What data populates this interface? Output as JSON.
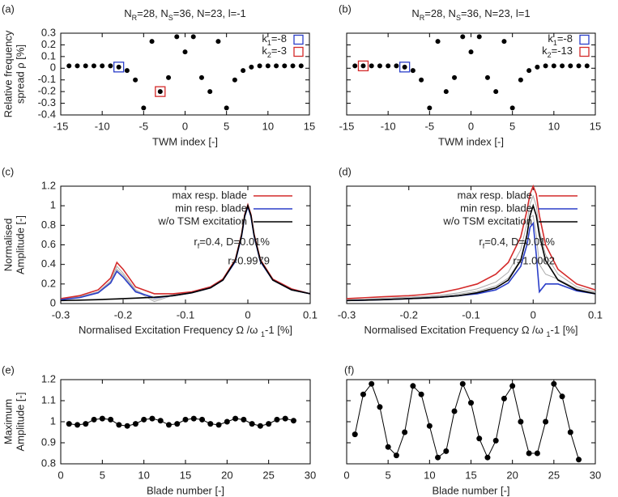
{
  "chart_data": [
    {
      "type": "scatter",
      "panel_label": "(a)",
      "title": [
        "N",
        "R",
        "=28, N",
        "S",
        "=36, N=23, l=-1"
      ],
      "xlabel": "TWM index [-]",
      "ylabel": [
        "Relative frequency",
        "spread ρ [%]"
      ],
      "x": [
        -14,
        -13,
        -12,
        -11,
        -10,
        -9,
        -8,
        -7,
        -6,
        -5,
        -4,
        -3,
        -2,
        -1,
        0,
        1,
        2,
        3,
        4,
        5,
        6,
        7,
        8,
        9,
        10,
        11,
        12,
        13,
        14
      ],
      "values": [
        0.02,
        0.02,
        0.02,
        0.02,
        0.02,
        0.02,
        0.01,
        -0.02,
        -0.1,
        -0.34,
        0.23,
        -0.2,
        -0.08,
        0.27,
        0.14,
        0.27,
        -0.08,
        -0.2,
        0.23,
        -0.34,
        -0.1,
        -0.02,
        0.01,
        0.02,
        0.02,
        0.02,
        0.02,
        0.02,
        0.02
      ],
      "color": "#000000",
      "highlights": [
        {
          "name": [
            "k",
            "1",
            "=-8"
          ],
          "k": -8,
          "color": "#2b3fc9"
        },
        {
          "name": [
            "k",
            "2",
            "=-3"
          ],
          "k": -3,
          "color": "#d42a2a"
        }
      ],
      "xlim": [
        -15,
        15
      ],
      "xticks": [
        -15,
        -10,
        -5,
        0,
        5,
        10,
        15
      ],
      "ylim": [
        -0.4,
        0.3
      ],
      "yticks": [
        -0.4,
        -0.3,
        -0.2,
        -0.1,
        0,
        0.1,
        0.2,
        0.3
      ],
      "ytick_labels": true,
      "legend": "top-right"
    },
    {
      "type": "scatter",
      "panel_label": "(b)",
      "title": [
        "N",
        "R",
        "=28, N",
        "S",
        "=36, N=23, l=1"
      ],
      "xlabel": "TWM index [-]",
      "x": [
        -14,
        -13,
        -12,
        -11,
        -10,
        -9,
        -8,
        -7,
        -6,
        -5,
        -4,
        -3,
        -2,
        -1,
        0,
        1,
        2,
        3,
        4,
        5,
        6,
        7,
        8,
        9,
        10,
        11,
        12,
        13,
        14
      ],
      "values": [
        0.02,
        0.02,
        0.02,
        0.02,
        0.02,
        0.02,
        0.01,
        -0.02,
        -0.1,
        -0.34,
        0.23,
        -0.2,
        -0.08,
        0.27,
        0.14,
        0.27,
        -0.08,
        -0.2,
        0.23,
        -0.34,
        -0.1,
        -0.02,
        0.01,
        0.02,
        0.02,
        0.02,
        0.02,
        0.02,
        0.02
      ],
      "color": "#000000",
      "highlights": [
        {
          "name": [
            "k",
            "1",
            "=-8"
          ],
          "k": -8,
          "color": "#2b3fc9"
        },
        {
          "name": [
            "k",
            "2",
            "=-13"
          ],
          "k": -13,
          "color": "#d42a2a"
        }
      ],
      "xlim": [
        -15,
        15
      ],
      "xticks": [
        -15,
        -10,
        -5,
        0,
        5,
        10,
        15
      ],
      "ylim": [
        -0.4,
        0.3
      ],
      "yticks": [
        -0.4,
        -0.3,
        -0.2,
        -0.1,
        0,
        0.1,
        0.2,
        0.3
      ],
      "ytick_labels": false,
      "legend": "top-right"
    },
    {
      "type": "line",
      "panel_label": "(c)",
      "xlabel": [
        "Normalised Excitation Frequency  Ω /ω ",
        "1",
        "-1  [%]"
      ],
      "ylabel": [
        "Normalised",
        "Amplitude [-]"
      ],
      "x": [
        -0.3,
        -0.27,
        -0.24,
        -0.22,
        -0.21,
        -0.2,
        -0.18,
        -0.15,
        -0.12,
        -0.09,
        -0.06,
        -0.04,
        -0.02,
        -0.01,
        -0.005,
        0,
        0.005,
        0.01,
        0.02,
        0.04,
        0.07,
        0.1
      ],
      "series": [
        {
          "color": "#aaaaaa",
          "values": [
            0.045,
            0.07,
            0.12,
            0.23,
            0.38,
            0.31,
            0.14,
            0.04,
            0.09,
            0.115,
            0.165,
            0.245,
            0.445,
            0.7,
            0.9,
            1.0,
            0.9,
            0.7,
            0.44,
            0.245,
            0.145,
            0.1
          ]
        },
        {
          "color": "#aaaaaa",
          "values": [
            0.04,
            0.065,
            0.115,
            0.22,
            0.35,
            0.29,
            0.13,
            0.02,
            0.085,
            0.112,
            0.162,
            0.242,
            0.44,
            0.7,
            0.9,
            1.0,
            0.9,
            0.7,
            0.44,
            0.24,
            0.14,
            0.1
          ]
        },
        {
          "name": "max resp. blade",
          "color": "#d42a2a",
          "values": [
            0.05,
            0.08,
            0.14,
            0.26,
            0.42,
            0.35,
            0.17,
            0.1,
            0.1,
            0.12,
            0.17,
            0.25,
            0.45,
            0.71,
            0.91,
            1.01,
            0.91,
            0.71,
            0.45,
            0.25,
            0.15,
            0.1
          ]
        },
        {
          "name": "min resp. blade",
          "color": "#2b3fc9",
          "values": [
            0.04,
            0.06,
            0.11,
            0.21,
            0.33,
            0.27,
            0.12,
            0.06,
            0.08,
            0.11,
            0.16,
            0.24,
            0.43,
            0.69,
            0.89,
            0.99,
            0.89,
            0.69,
            0.43,
            0.24,
            0.14,
            0.1
          ]
        },
        {
          "name": "w/o TSM excitation",
          "color": "#000000",
          "values": [
            0.03,
            0.035,
            0.04,
            0.045,
            0.047,
            0.05,
            0.055,
            0.065,
            0.08,
            0.11,
            0.16,
            0.24,
            0.44,
            0.7,
            0.9,
            1.0,
            0.9,
            0.7,
            0.44,
            0.24,
            0.14,
            0.1
          ]
        }
      ],
      "annotations": [
        [
          "r",
          "f",
          "=0.4, D=0.01%"
        ],
        "r=0.9979"
      ],
      "xlim": [
        -0.3,
        0.1
      ],
      "xticks": [
        -0.3,
        -0.2,
        -0.1,
        0,
        0.1
      ],
      "ylim": [
        0,
        1.2
      ],
      "yticks": [
        0,
        0.2,
        0.4,
        0.6,
        0.8,
        1,
        1.2
      ],
      "ytick_labels": true,
      "legend": "top-right"
    },
    {
      "type": "line",
      "panel_label": "(d)",
      "xlabel": [
        "Normalised Excitation Frequency  Ω /ω ",
        "1",
        "-1  [%]"
      ],
      "x": [
        -0.3,
        -0.27,
        -0.24,
        -0.22,
        -0.21,
        -0.2,
        -0.18,
        -0.15,
        -0.12,
        -0.09,
        -0.06,
        -0.04,
        -0.02,
        -0.01,
        -0.005,
        0,
        0.005,
        0.01,
        0.02,
        0.04,
        0.07,
        0.1
      ],
      "series": [
        {
          "color": "#aaaaaa",
          "values": [
            0.04,
            0.045,
            0.055,
            0.06,
            0.062,
            0.065,
            0.07,
            0.085,
            0.11,
            0.15,
            0.22,
            0.32,
            0.55,
            0.82,
            1.02,
            1.1,
            1.0,
            0.75,
            0.5,
            0.3,
            0.17,
            0.12
          ]
        },
        {
          "color": "#aaaaaa",
          "values": [
            0.035,
            0.04,
            0.045,
            0.05,
            0.052,
            0.055,
            0.062,
            0.075,
            0.095,
            0.125,
            0.18,
            0.26,
            0.45,
            0.7,
            0.88,
            0.9,
            0.7,
            0.4,
            0.3,
            0.25,
            0.15,
            0.11
          ]
        },
        {
          "name": "max resp. blade",
          "color": "#d42a2a",
          "values": [
            0.05,
            0.06,
            0.07,
            0.075,
            0.078,
            0.08,
            0.09,
            0.11,
            0.15,
            0.2,
            0.3,
            0.42,
            0.68,
            0.95,
            1.12,
            1.2,
            1.12,
            0.9,
            0.6,
            0.35,
            0.2,
            0.14
          ]
        },
        {
          "name": "min resp. blade",
          "color": "#2b3fc9",
          "values": [
            0.03,
            0.035,
            0.04,
            0.045,
            0.047,
            0.05,
            0.055,
            0.065,
            0.08,
            0.1,
            0.14,
            0.21,
            0.38,
            0.6,
            0.78,
            0.82,
            0.5,
            0.12,
            0.2,
            0.2,
            0.13,
            0.1
          ]
        },
        {
          "name": "w/o TSM excitation",
          "color": "#000000",
          "values": [
            0.03,
            0.035,
            0.04,
            0.045,
            0.047,
            0.05,
            0.055,
            0.065,
            0.08,
            0.11,
            0.16,
            0.24,
            0.44,
            0.7,
            0.9,
            1.0,
            0.9,
            0.7,
            0.44,
            0.24,
            0.14,
            0.1
          ]
        }
      ],
      "annotations": [
        [
          "r",
          "f",
          "=0.4, D=0.01%"
        ],
        "r=1.0002"
      ],
      "xlim": [
        -0.3,
        0.1
      ],
      "xticks": [
        -0.3,
        -0.2,
        -0.1,
        0,
        0.1
      ],
      "ylim": [
        0,
        1.2
      ],
      "yticks": [
        0,
        0.2,
        0.4,
        0.6,
        0.8,
        1,
        1.2
      ],
      "ytick_labels": false,
      "legend": "top-right"
    },
    {
      "type": "line",
      "markers": true,
      "panel_label": "(e)",
      "xlabel": "Blade number [-]",
      "ylabel": [
        "Maximum",
        "Amplitude [-]"
      ],
      "x": [
        1,
        2,
        3,
        4,
        5,
        6,
        7,
        8,
        9,
        10,
        11,
        12,
        13,
        14,
        15,
        16,
        17,
        18,
        19,
        20,
        21,
        22,
        23,
        24,
        25,
        26,
        27,
        28
      ],
      "series": [
        {
          "color": "#000000",
          "values": [
            0.99,
            0.985,
            0.99,
            1.01,
            1.015,
            1.01,
            0.985,
            0.98,
            0.99,
            1.01,
            1.015,
            1.005,
            0.985,
            0.99,
            1.01,
            1.015,
            1.01,
            0.99,
            0.985,
            1.0,
            1.015,
            1.01,
            0.99,
            0.98,
            0.99,
            1.01,
            1.015,
            1.005
          ]
        }
      ],
      "xlim": [
        0,
        30
      ],
      "xticks": [
        0,
        5,
        10,
        15,
        20,
        25,
        30
      ],
      "ylim": [
        0.8,
        1.2
      ],
      "yticks": [
        0.8,
        0.9,
        1,
        1.1,
        1.2
      ],
      "ytick_labels": true
    },
    {
      "type": "line",
      "markers": true,
      "panel_label": "(f)",
      "xlabel": "Blade number [-]",
      "x": [
        1,
        2,
        3,
        4,
        5,
        6,
        7,
        8,
        9,
        10,
        11,
        12,
        13,
        14,
        15,
        16,
        17,
        18,
        19,
        20,
        21,
        22,
        23,
        24,
        25,
        26,
        27,
        28
      ],
      "series": [
        {
          "color": "#000000",
          "values": [
            0.94,
            1.13,
            1.18,
            1.07,
            0.88,
            0.84,
            0.95,
            1.17,
            1.13,
            0.98,
            0.83,
            0.86,
            1.05,
            1.18,
            1.09,
            0.92,
            0.83,
            0.91,
            1.11,
            1.17,
            1.0,
            0.85,
            0.85,
            1.0,
            1.18,
            1.12,
            0.95,
            0.82
          ]
        }
      ],
      "xlim": [
        0,
        30
      ],
      "xticks": [
        0,
        5,
        10,
        15,
        20,
        25,
        30
      ],
      "ylim": [
        0.8,
        1.2
      ],
      "yticks": [
        0.8,
        0.9,
        1,
        1.1,
        1.2
      ],
      "ytick_labels": false
    }
  ]
}
